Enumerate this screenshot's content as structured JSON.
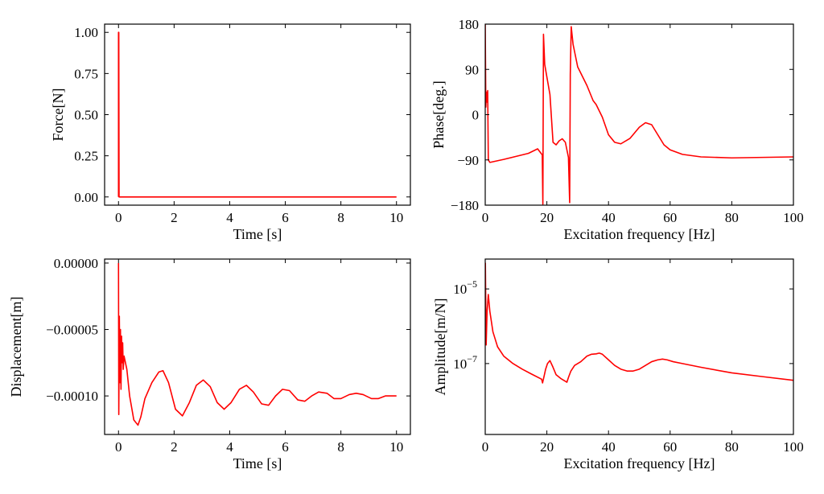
{
  "chart_data": [
    {
      "id": "force",
      "type": "line",
      "xlabel": "Time [s]",
      "ylabel": "Force[N]",
      "xlim": [
        -0.5,
        10.5
      ],
      "ylim": [
        -0.05,
        1.05
      ],
      "xticks": [
        0,
        2,
        4,
        6,
        8,
        10
      ],
      "xtick_labels": [
        "0",
        "2",
        "4",
        "6",
        "8",
        "10"
      ],
      "yticks": [
        0.0,
        0.25,
        0.5,
        0.75,
        1.0
      ],
      "ytick_labels": [
        "0.00",
        "0.25",
        "0.50",
        "0.75",
        "1.00"
      ],
      "series": [
        {
          "name": "force",
          "color": "#ff0000",
          "x": [
            0,
            0,
            0.01,
            0.02,
            10
          ],
          "y": [
            0,
            1.0,
            1.0,
            0,
            0
          ]
        }
      ]
    },
    {
      "id": "phase",
      "type": "line",
      "xlabel": "Excitation frequency [Hz]",
      "ylabel": "Phase[deg.]",
      "xlim": [
        0,
        100
      ],
      "ylim": [
        -180,
        180
      ],
      "xticks": [
        0,
        20,
        40,
        60,
        80,
        100
      ],
      "xtick_labels": [
        "0",
        "20",
        "40",
        "60",
        "80",
        "100"
      ],
      "yticks": [
        -180,
        -90,
        0,
        90,
        180
      ],
      "ytick_labels": [
        "−180",
        "−90",
        "0",
        "90",
        "180"
      ],
      "series": [
        {
          "name": "phase",
          "color": "#ff0000",
          "x": [
            0,
            0.2,
            0.4,
            0.6,
            0.8,
            1.0,
            1.5,
            3,
            6,
            10,
            14,
            17,
            18.5,
            18.7,
            18.9,
            19.3,
            20,
            21,
            22,
            23,
            24,
            25,
            26,
            27,
            27.4,
            27.6,
            27.9,
            28.5,
            30,
            33,
            35,
            36,
            38,
            40,
            42,
            44,
            47,
            50,
            52,
            54,
            56,
            58,
            60,
            64,
            70,
            80,
            90,
            100
          ],
          "y": [
            180,
            15,
            45,
            25,
            48,
            -90,
            -95,
            -93,
            -89,
            -83,
            -77,
            -68,
            -80,
            -178,
            160,
            100,
            75,
            40,
            -55,
            -60,
            -52,
            -48,
            -55,
            -85,
            -175,
            80,
            175,
            140,
            95,
            58,
            28,
            20,
            -5,
            -40,
            -55,
            -58,
            -47,
            -25,
            -16,
            -20,
            -40,
            -60,
            -70,
            -79,
            -84,
            -86,
            -85,
            -84
          ]
        }
      ]
    },
    {
      "id": "displacement",
      "type": "line",
      "xlabel": "Time [s]",
      "ylabel": "Displacement[m]",
      "xlim": [
        -0.5,
        10.5
      ],
      "ylim": [
        -0.000129,
        3e-06
      ],
      "xticks": [
        0,
        2,
        4,
        6,
        8,
        10
      ],
      "xtick_labels": [
        "0",
        "2",
        "4",
        "6",
        "8",
        "10"
      ],
      "yticks": [
        -0.0001,
        -5e-05,
        0.0
      ],
      "ytick_labels": [
        "−0.00010",
        "−0.00005",
        "0.00000"
      ],
      "series": [
        {
          "name": "displacement",
          "color": "#ff0000",
          "x": [
            0,
            0.01,
            0.03,
            0.05,
            0.07,
            0.09,
            0.11,
            0.13,
            0.15,
            0.17,
            0.2,
            0.25,
            0.3,
            0.4,
            0.55,
            0.7,
            0.8,
            0.95,
            1.2,
            1.45,
            1.6,
            1.8,
            2.05,
            2.3,
            2.55,
            2.8,
            3.05,
            3.3,
            3.55,
            3.8,
            4.05,
            4.35,
            4.6,
            4.85,
            5.15,
            5.4,
            5.65,
            5.9,
            6.15,
            6.45,
            6.7,
            6.95,
            7.2,
            7.5,
            7.75,
            8.0,
            8.3,
            8.55,
            8.8,
            9.1,
            9.35,
            9.6,
            9.85,
            10.0
          ],
          "y": [
            0.0,
            -0.000114,
            -4e-05,
            -9e-05,
            -5e-05,
            -9.5e-05,
            -5.5e-05,
            -7.5e-05,
            -6e-05,
            -8e-05,
            -7e-05,
            -7.5e-05,
            -8e-05,
            -0.0001,
            -0.000118,
            -0.000122,
            -0.000116,
            -0.000102,
            -9e-05,
            -8.2e-05,
            -8.1e-05,
            -9e-05,
            -0.00011,
            -0.000115,
            -0.000105,
            -9.2e-05,
            -8.8e-05,
            -9.3e-05,
            -0.000105,
            -0.00011,
            -0.000105,
            -9.5e-05,
            -9.2e-05,
            -9.7e-05,
            -0.000106,
            -0.000107,
            -0.0001,
            -9.5e-05,
            -9.6e-05,
            -0.000103,
            -0.000104,
            -0.0001,
            -9.7e-05,
            -9.8e-05,
            -0.000102,
            -0.000102,
            -9.9e-05,
            -9.8e-05,
            -9.9e-05,
            -0.000102,
            -0.000102,
            -0.0001,
            -0.0001,
            -0.0001
          ]
        }
      ]
    },
    {
      "id": "amplitude",
      "type": "line",
      "yscale": "log",
      "xlabel": "Excitation frequency [Hz]",
      "ylabel": "Amplitude[m/N]",
      "xlim": [
        0,
        100
      ],
      "ylim_log10": [
        -8.9,
        -4.2
      ],
      "xticks": [
        0,
        20,
        40,
        60,
        80,
        100
      ],
      "xtick_labels": [
        "0",
        "20",
        "40",
        "60",
        "80",
        "100"
      ],
      "yticks_log10": [
        -7,
        -5
      ],
      "ytick_base": "10",
      "ytick_exponents": [
        "−7",
        "−5"
      ],
      "series": [
        {
          "name": "amplitude",
          "color": "#ff0000",
          "x": [
            0.05,
            0.3,
            0.6,
            1.0,
            1.5,
            2.5,
            4,
            6,
            9,
            12,
            15,
            18.3,
            18.6,
            19.2,
            19.6,
            20.2,
            21,
            22,
            23,
            24.5,
            26.5,
            27.1,
            27.8,
            29,
            31,
            33,
            34.5,
            36,
            37,
            38,
            40,
            42,
            44,
            46,
            48,
            50,
            52,
            54,
            56,
            57.5,
            59,
            61,
            64,
            70,
            80,
            90,
            100
          ],
          "y_log10": [
            -4.3,
            -6.5,
            -5.6,
            -5.15,
            -5.6,
            -6.15,
            -6.55,
            -6.8,
            -7.0,
            -7.15,
            -7.28,
            -7.42,
            -7.52,
            -7.3,
            -7.15,
            -7.0,
            -6.92,
            -7.1,
            -7.3,
            -7.4,
            -7.5,
            -7.35,
            -7.2,
            -7.05,
            -6.95,
            -6.8,
            -6.75,
            -6.74,
            -6.72,
            -6.75,
            -6.9,
            -7.05,
            -7.15,
            -7.2,
            -7.2,
            -7.15,
            -7.05,
            -6.95,
            -6.9,
            -6.88,
            -6.9,
            -6.95,
            -7.0,
            -7.1,
            -7.25,
            -7.35,
            -7.45
          ]
        }
      ]
    }
  ]
}
